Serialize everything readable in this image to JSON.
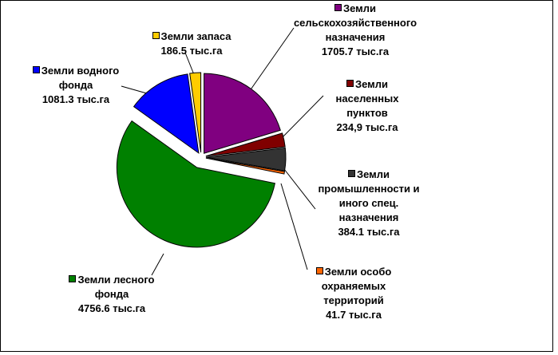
{
  "chart_data": {
    "type": "pie",
    "categories": [
      "Земли сельскохозяйственного назначения",
      "Земли населенных пунктов",
      "Земли промышленности и иного спец. назначения",
      "Земли особо охраняемых территорий",
      "Земли лесного фонда",
      "Земли водного фонда",
      "Земли запаса"
    ],
    "values": [
      1705.7,
      234.9,
      384.1,
      41.7,
      4756.6,
      1081.3,
      186.5
    ],
    "value_labels": [
      "1705.7 тыс.га",
      "234,9 тыс.га",
      "384.1 тыс.га",
      "41.7 тыс.га",
      "4756.6 тыс.га",
      "1081.3 тыс.га",
      "186.5 тыс.га"
    ],
    "colors": [
      "#800080",
      "#800000",
      "#333333",
      "#ff6600",
      "#008000",
      "#0000ff",
      "#ffcc00"
    ]
  }
}
